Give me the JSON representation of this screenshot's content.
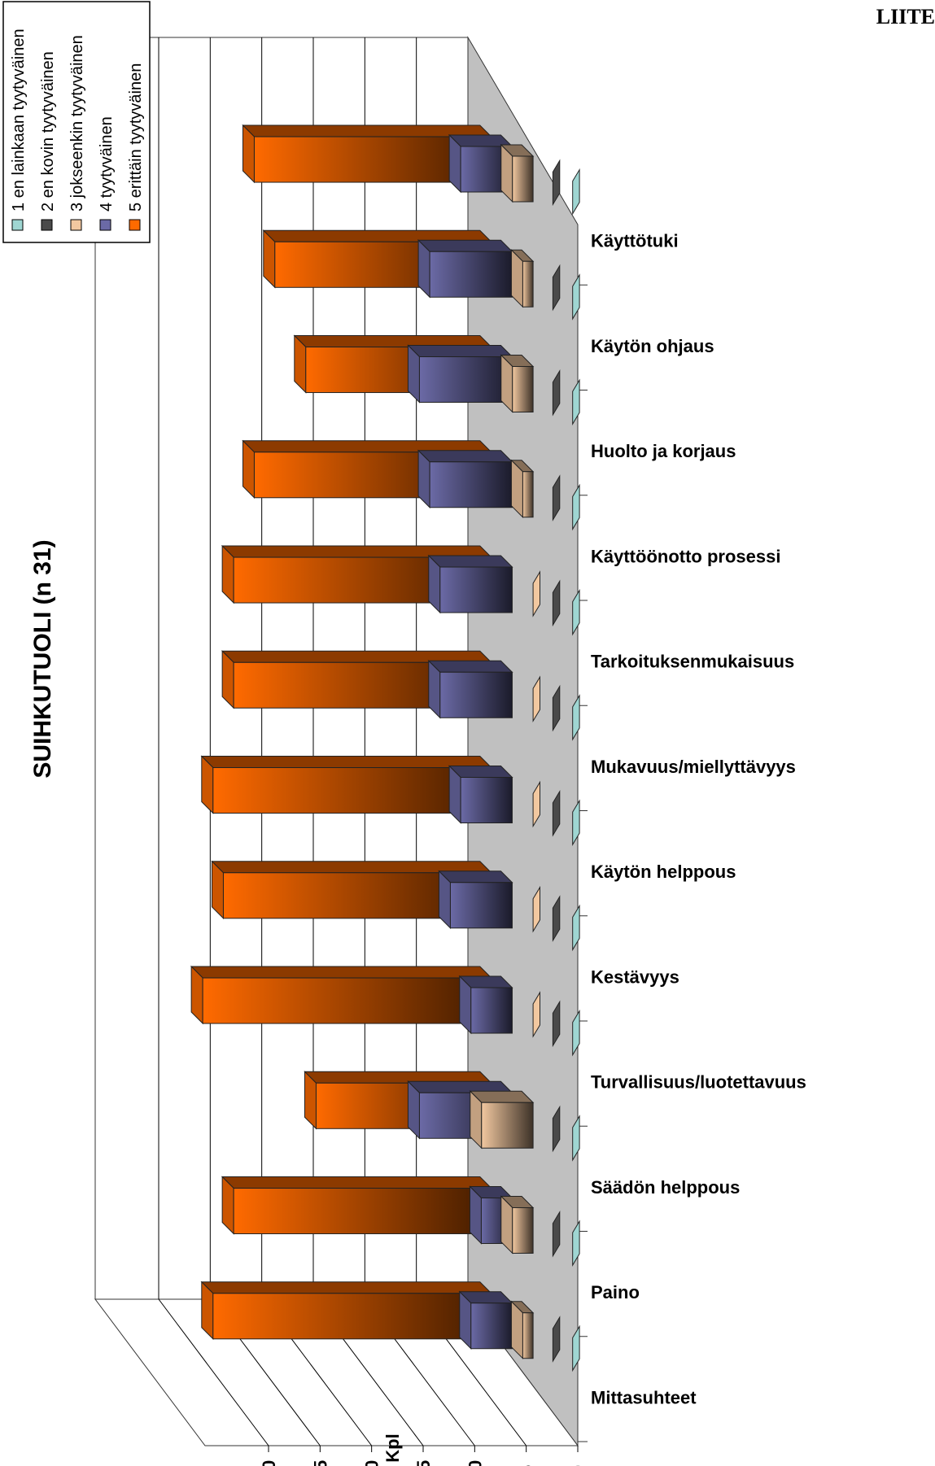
{
  "page_label": "LIITE",
  "colors": {
    "s1": "#9fd6d2",
    "s2": "#4a4a4a",
    "s3": "#f2c8a0",
    "s4": "#6b6aa6",
    "s5": "#ff6a00",
    "floor": "#c0c0c0",
    "wall": "#ffffff"
  },
  "chart_data": {
    "type": "bar",
    "orientation": "3d-horizontal-bars (page rotated)",
    "title": "SUIHKUTUOLI (n 31)",
    "xlabel": "Kpl",
    "ylabel": "",
    "xlim": [
      0,
      30
    ],
    "ticks": [
      "0",
      "5",
      "10",
      "15",
      "20",
      "25",
      "30"
    ],
    "grid": true,
    "legend_position": "top-left",
    "categories": [
      "Käyttötuki",
      "Käytön ohjaus",
      "Huolto ja korjaus",
      "Käyttöönotto prosessi",
      "Tarkoituksenmukaisuus",
      "Mukavuus/miellyttävyys",
      "Käytön helppous",
      "Kestävyys",
      "Turvallisuus/luotettavuus",
      "Säädön helppous",
      "Paino",
      "Mittasuhteet"
    ],
    "series": [
      {
        "name": "1 en lainkaan tyytyväinen",
        "values": [
          0,
          0,
          0,
          0,
          0,
          0,
          0,
          0,
          0,
          0,
          0,
          0
        ]
      },
      {
        "name": "2 en kovin tyytyväinen",
        "values": [
          0,
          0,
          0,
          0,
          0,
          0,
          0,
          0,
          0,
          0,
          0,
          0
        ]
      },
      {
        "name": "3 jokseenkin tyytyväinen",
        "values": [
          2,
          1,
          2,
          1,
          0,
          0,
          0,
          0,
          0,
          5,
          2,
          1
        ]
      },
      {
        "name": "4 tyytyväinen",
        "values": [
          5,
          8,
          9,
          8,
          7,
          7,
          5,
          6,
          4,
          9,
          3,
          4
        ]
      },
      {
        "name": "5 erittäin tyytyväinen",
        "values": [
          23,
          21,
          18,
          23,
          25,
          25,
          27,
          26,
          28,
          17,
          25,
          27
        ]
      }
    ]
  }
}
